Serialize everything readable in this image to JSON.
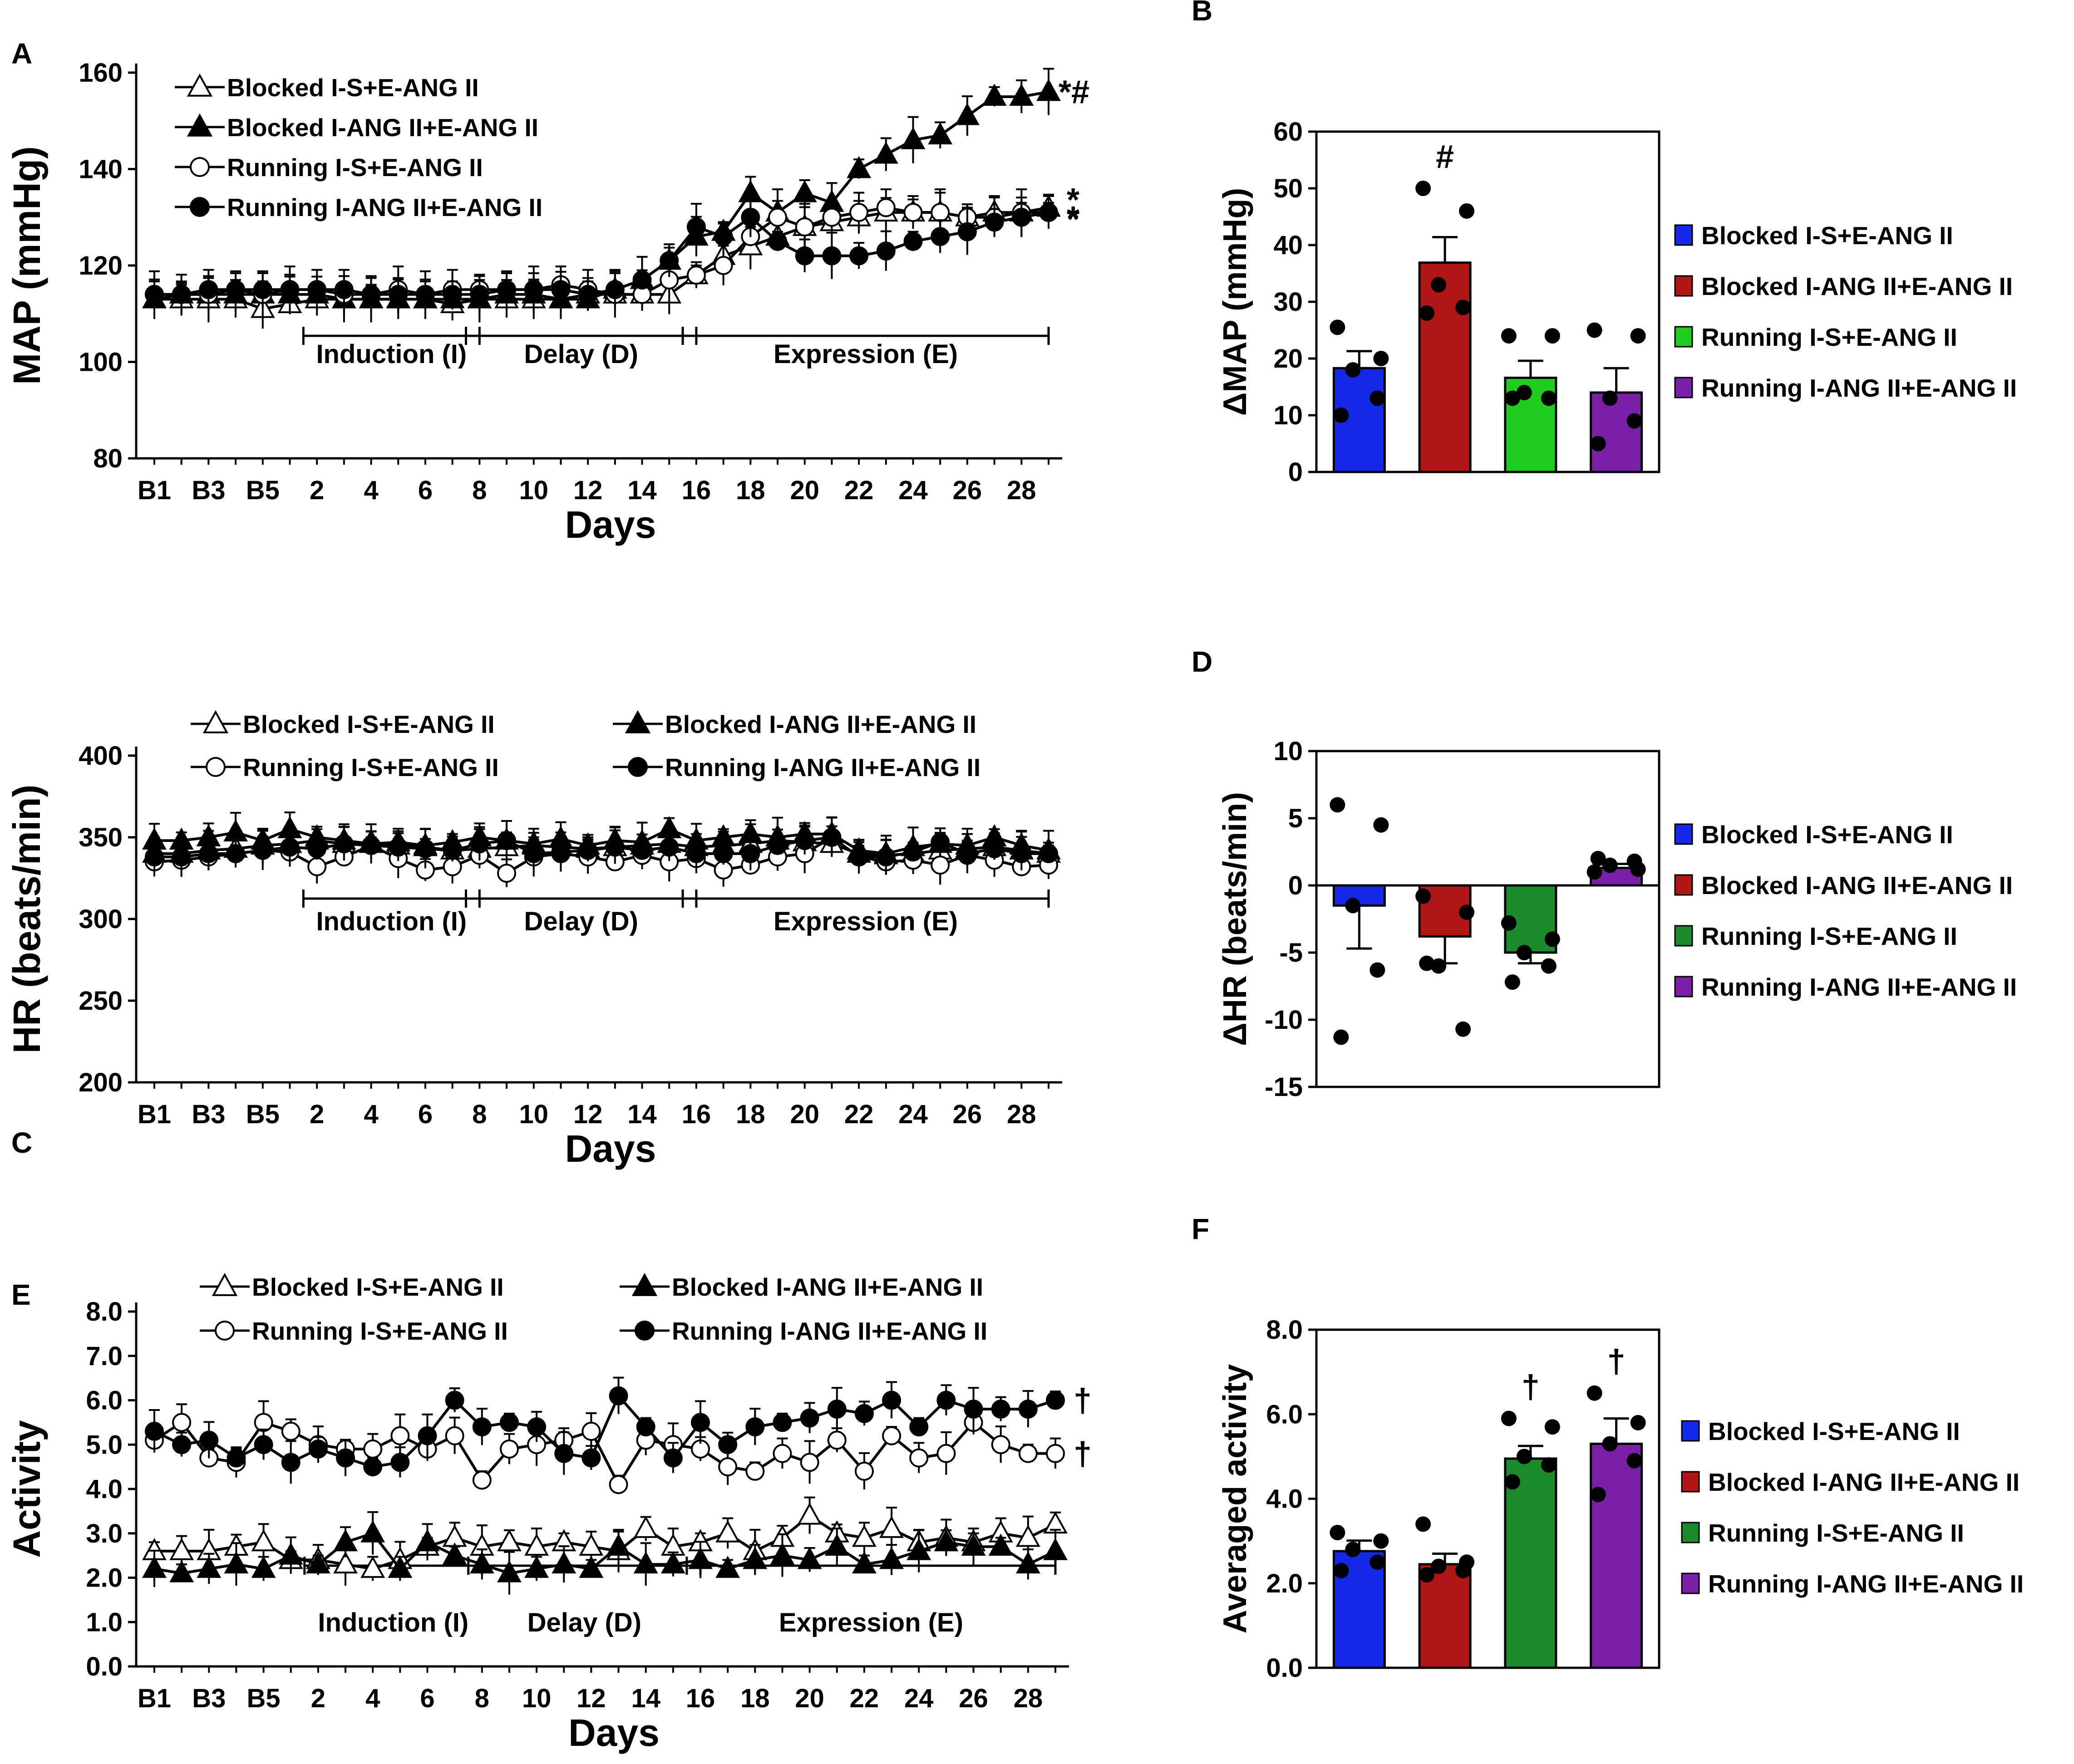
{
  "chart_data": [
    {
      "panel": "A",
      "type": "line",
      "ylabel": "MAP (mmHg)",
      "xlabel": "Days",
      "ylim": [
        80,
        160
      ],
      "yticks": [
        "80",
        "100",
        "120",
        "140",
        "160"
      ],
      "xticks": [
        "B1",
        "B3",
        "B5",
        "2",
        "4",
        "6",
        "8",
        "10",
        "12",
        "14",
        "16",
        "18",
        "20",
        "22",
        "24",
        "26",
        "28"
      ],
      "phases": [
        {
          "label": "Induction (I)",
          "from": 1,
          "to": 7
        },
        {
          "label": "Delay (D)",
          "from": 7,
          "to": 15
        },
        {
          "label": "Expression (E)",
          "from": 15,
          "to": 28
        }
      ],
      "annotations": [
        {
          "text": "*#",
          "series": 1,
          "offset": [
            -18,
            0
          ]
        },
        {
          "text": "*",
          "series": 2,
          "offset": [
            0,
            15
          ]
        },
        {
          "text": "*",
          "series": 3,
          "offset": [
            0,
            -28
          ]
        },
        {
          "text": "*",
          "series": 3,
          "offset": [
            0,
            12
          ]
        }
      ],
      "series": [
        {
          "name": "Blocked I-S+E-ANG II",
          "marker": "triangle-open",
          "values": [
            113,
            113,
            113,
            113,
            111,
            112,
            113,
            113,
            113,
            113,
            113,
            112,
            113,
            113,
            113,
            113,
            114,
            114,
            114,
            114,
            118,
            122,
            124,
            126,
            128,
            129,
            130,
            131,
            131,
            131,
            130,
            131,
            131,
            132
          ]
        },
        {
          "name": "Blocked I-ANG II+E-ANG II",
          "marker": "triangle-filled",
          "values": [
            113,
            114,
            114,
            114,
            114,
            114,
            114,
            113,
            113,
            113,
            113,
            113,
            113,
            114,
            114,
            113,
            113,
            115,
            117,
            121,
            126,
            127,
            135,
            131,
            135,
            133,
            140,
            143,
            146,
            147,
            151,
            155,
            155,
            156
          ]
        },
        {
          "name": "Running I-S+E-ANG II",
          "marker": "circle-open",
          "values": [
            114,
            114,
            114,
            115,
            114,
            115,
            115,
            114,
            114,
            115,
            114,
            115,
            115,
            115,
            115,
            116,
            115,
            114,
            114,
            117,
            118,
            120,
            126,
            130,
            128,
            130,
            131,
            132,
            131,
            131,
            130,
            130,
            131,
            131
          ]
        },
        {
          "name": "Running I-ANG II+E-ANG II",
          "marker": "circle-filled",
          "values": [
            114,
            114,
            115,
            115,
            115,
            115,
            115,
            115,
            114,
            114,
            114,
            114,
            114,
            115,
            115,
            115,
            114,
            115,
            117,
            121,
            128,
            126,
            130,
            125,
            122,
            122,
            122,
            123,
            125,
            126,
            127,
            129,
            130,
            131
          ]
        }
      ]
    },
    {
      "panel": "B",
      "type": "bar",
      "ylabel": "ΔMAP (mmHg)",
      "ylim": [
        0,
        60
      ],
      "yticks": [
        "0",
        "10",
        "20",
        "30",
        "40",
        "50",
        "60"
      ],
      "categories": [
        "Blocked I-S+E-ANG II",
        "Blocked I-ANG II+E-ANG II",
        "Running I-S+E-ANG II",
        "Running I-ANG II+E-ANG II"
      ],
      "colors": [
        "#1428e8",
        "#b01616",
        "#1fcc1f",
        "#7a20a8"
      ],
      "values": [
        18.3,
        36.9,
        16.6,
        14.0
      ],
      "errors": [
        3.0,
        4.5,
        3.0,
        4.3
      ],
      "points": [
        [
          25.5,
          20,
          18,
          13,
          10
        ],
        [
          50,
          46,
          33,
          29,
          28
        ],
        [
          24,
          24,
          14,
          13,
          13
        ],
        [
          25,
          24,
          13,
          9,
          5
        ]
      ],
      "marks": [
        "",
        "#",
        "",
        ""
      ]
    },
    {
      "panel": "C",
      "type": "line",
      "ylabel": "HR (beats/min)",
      "xlabel": "Days",
      "ylim": [
        200,
        400
      ],
      "yticks": [
        "200",
        "250",
        "300",
        "350",
        "400"
      ],
      "xticks": [
        "B1",
        "B3",
        "B5",
        "2",
        "4",
        "6",
        "8",
        "10",
        "12",
        "14",
        "16",
        "18",
        "20",
        "22",
        "24",
        "26",
        "28"
      ],
      "phases": [
        {
          "label": "Induction (I)",
          "from": 1,
          "to": 7
        },
        {
          "label": "Delay (D)",
          "from": 7,
          "to": 15
        },
        {
          "label": "Expression (E)",
          "from": 15,
          "to": 28
        }
      ],
      "annotations": [],
      "series": [
        {
          "name": "Blocked I-S+E-ANG II",
          "marker": "triangle-open",
          "values": [
            340,
            340,
            342,
            343,
            345,
            346,
            348,
            346,
            347,
            345,
            344,
            342,
            343,
            344,
            345,
            344,
            343,
            344,
            345,
            346,
            344,
            345,
            346,
            348,
            347,
            346,
            340,
            339,
            340,
            342,
            343,
            344,
            342,
            340
          ]
        },
        {
          "name": "Blocked I-ANG II+E-ANG II",
          "marker": "triangle-filled",
          "values": [
            348,
            348,
            350,
            353,
            348,
            355,
            350,
            348,
            346,
            347,
            345,
            347,
            350,
            348,
            346,
            349,
            345,
            348,
            347,
            355,
            348,
            350,
            352,
            350,
            352,
            352,
            342,
            340,
            344,
            346,
            345,
            350,
            345,
            342
          ]
        },
        {
          "name": "Running I-S+E-ANG II",
          "marker": "circle-open",
          "values": [
            335,
            336,
            338,
            340,
            342,
            341,
            332,
            338,
            345,
            337,
            330,
            332,
            339,
            328,
            338,
            340,
            338,
            335,
            339,
            335,
            337,
            330,
            333,
            338,
            340,
            350,
            338,
            335,
            336,
            333,
            339,
            336,
            332,
            333
          ]
        },
        {
          "name": "Running I-ANG II+E-ANG II",
          "marker": "circle-filled",
          "values": [
            338,
            338,
            340,
            340,
            342,
            344,
            343,
            346,
            345,
            344,
            343,
            342,
            346,
            348,
            340,
            341,
            342,
            344,
            342,
            344,
            340,
            340,
            340,
            345,
            348,
            350,
            338,
            338,
            341,
            347,
            340,
            343,
            340,
            340
          ]
        }
      ]
    },
    {
      "panel": "D",
      "type": "bar",
      "ylabel": "ΔHR (beats/min)",
      "ylim": [
        -15,
        10
      ],
      "yticks": [
        "-15",
        "-10",
        "-5",
        "0",
        "5",
        "10"
      ],
      "categories": [
        "Blocked I-S+E-ANG II",
        "Blocked I-ANG II+E-ANG II",
        "Running I-S+E-ANG II",
        "Running I-ANG II+E-ANG II"
      ],
      "colors": [
        "#1428e8",
        "#b01616",
        "#1a8a2a",
        "#7a20a8"
      ],
      "values": [
        -1.5,
        -3.8,
        -5.0,
        1.3
      ],
      "errors": [
        3.2,
        2.0,
        0.8,
        0.3
      ],
      "points": [
        [
          6,
          4.5,
          -1.5,
          -6.3,
          -11.3
        ],
        [
          -0.8,
          -2,
          -6,
          -10.7,
          -5.8
        ],
        [
          -2.8,
          -4,
          -5,
          -6,
          -7.2
        ],
        [
          1,
          1.2,
          1.5,
          1.8,
          2
        ]
      ],
      "marks": [
        "",
        "",
        "",
        ""
      ]
    },
    {
      "panel": "E",
      "type": "line",
      "ylabel": "Activity",
      "xlabel": "Days",
      "ylim": [
        0,
        8
      ],
      "yticks": [
        "0.0",
        "1.0",
        "2.0",
        "3.0",
        "4.0",
        "5.0",
        "6.0",
        "7.0",
        "8.0"
      ],
      "xticks": [
        "B1",
        "B3",
        "B5",
        "2",
        "4",
        "6",
        "8",
        "10",
        "12",
        "14",
        "16",
        "18",
        "20",
        "22",
        "24",
        "26",
        "28"
      ],
      "phases": [
        {
          "label": "Induction (I)",
          "from": 1,
          "to": 7
        },
        {
          "label": "Delay (D)",
          "from": 7,
          "to": 15
        },
        {
          "label": "Expression (E)",
          "from": 15,
          "to": 28
        }
      ],
      "annotations": [
        {
          "text": "†",
          "series": 3,
          "offset": [
            0,
            0
          ]
        },
        {
          "text": "†",
          "series": 2,
          "offset": [
            0,
            0
          ]
        }
      ],
      "series": [
        {
          "name": "Blocked I-S+E-ANG II",
          "marker": "triangle-open",
          "values": [
            2.6,
            2.6,
            2.6,
            2.7,
            2.8,
            2.4,
            2.4,
            2.3,
            2.2,
            2.4,
            2.7,
            2.9,
            2.7,
            2.8,
            2.7,
            2.8,
            2.7,
            2.6,
            3.1,
            2.7,
            2.8,
            3.0,
            2.6,
            2.9,
            3.4,
            3.0,
            2.9,
            3.1,
            2.8,
            2.9,
            2.8,
            3.0,
            2.9,
            3.2
          ]
        },
        {
          "name": "Blocked I-ANG II+E-ANG II",
          "marker": "triangle-filled",
          "values": [
            2.2,
            2.1,
            2.2,
            2.3,
            2.2,
            2.5,
            2.3,
            2.8,
            3.0,
            2.2,
            2.8,
            2.5,
            2.3,
            2.1,
            2.2,
            2.3,
            2.2,
            2.7,
            2.3,
            2.3,
            2.4,
            2.2,
            2.4,
            2.5,
            2.4,
            2.7,
            2.3,
            2.4,
            2.6,
            2.8,
            2.7,
            2.7,
            2.3,
            2.6
          ]
        },
        {
          "name": "Running I-S+E-ANG II",
          "marker": "circle-open",
          "values": [
            5.1,
            5.5,
            4.7,
            4.6,
            5.5,
            5.3,
            5.0,
            4.9,
            4.9,
            5.2,
            4.9,
            5.2,
            4.2,
            4.9,
            5.0,
            5.1,
            5.3,
            4.1,
            5.1,
            5.0,
            4.9,
            4.5,
            4.4,
            4.8,
            4.6,
            5.1,
            4.4,
            5.2,
            4.7,
            4.8,
            5.5,
            5.0,
            4.8,
            4.8
          ]
        },
        {
          "name": "Running I-ANG II+E-ANG II",
          "marker": "circle-filled",
          "values": [
            5.3,
            5.0,
            5.1,
            4.7,
            5.0,
            4.6,
            4.9,
            4.7,
            4.5,
            4.6,
            5.2,
            6.0,
            5.4,
            5.5,
            5.4,
            4.8,
            4.7,
            6.1,
            5.4,
            4.7,
            5.5,
            5.0,
            5.4,
            5.5,
            5.6,
            5.8,
            5.7,
            6.0,
            5.4,
            6.0,
            5.8,
            5.8,
            5.8,
            6.0
          ]
        }
      ]
    },
    {
      "panel": "F",
      "type": "bar",
      "ylabel": "Averaged activity",
      "ylim": [
        0,
        8
      ],
      "yticks": [
        "0.0",
        "2.0",
        "4.0",
        "6.0",
        "8.0"
      ],
      "categories": [
        "Blocked I-S+E-ANG II",
        "Blocked I-ANG II+E-ANG II",
        "Running I-S+E-ANG II",
        "Running I-ANG II+E-ANG II"
      ],
      "colors": [
        "#1428e8",
        "#b01616",
        "#1a8a2a",
        "#7a20a8"
      ],
      "values": [
        2.76,
        2.45,
        4.95,
        5.3
      ],
      "errors": [
        0.25,
        0.25,
        0.3,
        0.6
      ],
      "points": [
        [
          3.2,
          3.0,
          2.8,
          2.5,
          2.3
        ],
        [
          3.4,
          2.5,
          2.4,
          2.3,
          2.2
        ],
        [
          5.9,
          5.7,
          5.0,
          4.8,
          4.4
        ],
        [
          6.5,
          5.8,
          5.3,
          4.9,
          4.1
        ]
      ],
      "marks": [
        "",
        "",
        "†",
        "†"
      ]
    }
  ]
}
